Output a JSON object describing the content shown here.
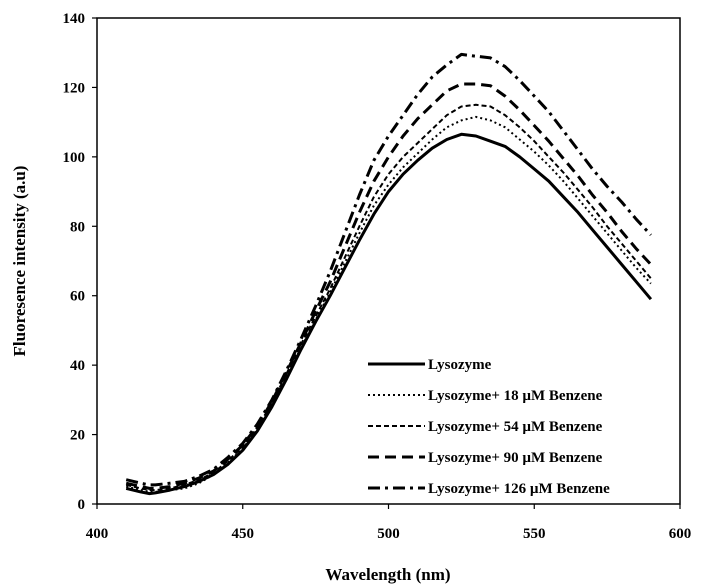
{
  "chart_data": {
    "type": "line",
    "title": "",
    "xlabel": "Wavelength (nm)",
    "ylabel": "Fluoresence intensity (a.u)",
    "xlim": [
      400,
      600
    ],
    "ylim": [
      0,
      140
    ],
    "xticks": [
      400,
      450,
      500,
      550,
      600
    ],
    "yticks": [
      0,
      20,
      40,
      60,
      80,
      100,
      120,
      140
    ],
    "grid": false,
    "legend_position": "bottom-right",
    "x": [
      410,
      415,
      418,
      420,
      425,
      430,
      435,
      440,
      445,
      450,
      455,
      460,
      465,
      470,
      475,
      480,
      485,
      490,
      495,
      500,
      505,
      510,
      515,
      520,
      525,
      530,
      535,
      540,
      545,
      550,
      555,
      560,
      565,
      570,
      575,
      580,
      585,
      590
    ],
    "series": [
      {
        "name": "Lysozyme",
        "dash": "solid",
        "values": [
          4.5,
          3.5,
          3.0,
          3.2,
          4.0,
          5.0,
          6.5,
          8.5,
          11.5,
          15.5,
          21.0,
          28.0,
          36.0,
          44.5,
          52.5,
          60.0,
          68.0,
          76.0,
          83.5,
          90.0,
          95.0,
          99.0,
          102.5,
          105.0,
          106.5,
          106.0,
          104.5,
          103.0,
          100.0,
          96.5,
          93.0,
          88.5,
          84.0,
          79.0,
          74.0,
          69.0,
          64.0,
          59.0
        ]
      },
      {
        "name": "Lysozyme+ 18 µM Benzene",
        "dash": "dotted",
        "values": [
          5.0,
          4.0,
          3.5,
          3.5,
          4.0,
          4.5,
          6.0,
          8.5,
          12.0,
          16.0,
          21.5,
          28.5,
          37.0,
          45.0,
          53.0,
          61.0,
          69.5,
          78.0,
          86.0,
          92.0,
          97.0,
          101.0,
          105.0,
          108.5,
          110.5,
          111.5,
          110.5,
          108.5,
          105.0,
          101.5,
          97.5,
          93.0,
          88.0,
          83.0,
          78.0,
          73.0,
          68.0,
          63.5
        ]
      },
      {
        "name": "Lysozyme+ 54 µM Benzene",
        "dash": "short-dash",
        "values": [
          5.5,
          4.5,
          4.0,
          4.0,
          4.5,
          5.5,
          7.0,
          9.0,
          12.5,
          16.5,
          22.0,
          29.0,
          37.5,
          46.0,
          54.0,
          62.0,
          71.0,
          80.0,
          88.5,
          95.0,
          100.0,
          104.0,
          108.0,
          112.0,
          114.5,
          115.0,
          114.5,
          112.0,
          108.5,
          104.5,
          100.0,
          95.5,
          90.5,
          85.5,
          80.0,
          75.0,
          70.0,
          65.0
        ]
      },
      {
        "name": "Lysozyme+ 90 µM Benzene",
        "dash": "long-dash",
        "values": [
          6.0,
          5.0,
          4.5,
          4.5,
          5.0,
          6.0,
          7.5,
          9.5,
          13.0,
          17.0,
          22.5,
          29.5,
          38.0,
          46.5,
          55.5,
          64.0,
          74.0,
          84.0,
          93.0,
          100.0,
          106.0,
          111.0,
          115.0,
          119.0,
          121.0,
          121.0,
          120.5,
          117.5,
          113.5,
          109.0,
          104.5,
          99.5,
          94.5,
          89.0,
          84.0,
          78.5,
          73.5,
          69.0
        ]
      },
      {
        "name": "Lysozyme+ 126 µM Benzene",
        "dash": "dash-dot",
        "values": [
          7.0,
          6.0,
          5.5,
          5.5,
          6.0,
          6.5,
          8.0,
          10.0,
          13.5,
          17.5,
          23.0,
          30.0,
          38.5,
          47.5,
          57.0,
          67.0,
          78.0,
          89.0,
          99.0,
          106.0,
          112.0,
          118.0,
          123.0,
          126.5,
          129.5,
          129.0,
          128.5,
          126.0,
          122.0,
          117.5,
          113.0,
          107.5,
          102.0,
          96.5,
          91.5,
          87.0,
          82.0,
          77.5
        ]
      }
    ]
  }
}
